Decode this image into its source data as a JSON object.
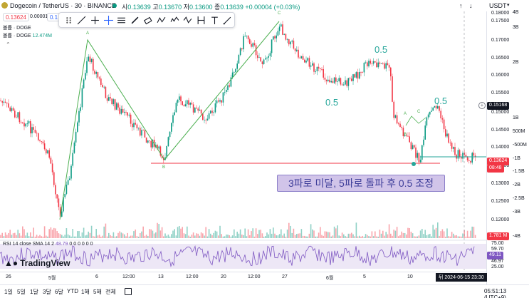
{
  "header": {
    "symbol": "Dogecoin / TetherUS · 30 · BINANCE",
    "ohlc_o_label": "시",
    "ohlc_o": "0.13639",
    "ohlc_h_label": "고",
    "ohlc_h": "0.13670",
    "ohlc_l_label": "저",
    "ohlc_l": "0.13600",
    "ohlc_c_label": "종",
    "ohlc_c": "0.13639",
    "change": "+0.00004 (+0.03%)",
    "sell_price": "0.13624",
    "spread": "0.00001",
    "buy_price": "0.1",
    "currency": "USDT"
  },
  "legend": {
    "volume_label": "볼륨 · DOGE",
    "volume2_label": "볼륨 · DOGE",
    "volume2_value": "12.474M"
  },
  "price_axis": {
    "ticks": [
      "0.18000",
      "0.17500",
      "0.17000",
      "0.16500",
      "0.16000",
      "0.15500",
      "0.15000",
      "0.14500",
      "0.14000",
      "0.13500",
      "0.13000",
      "0.12500",
      "0.12000"
    ],
    "volume_ticks": [
      "4B",
      "3B",
      "2B",
      "1B",
      "500M",
      "-500M",
      "-1B",
      "-1.5B",
      "-2B",
      "-2.5B",
      "-3B",
      "-4B"
    ],
    "tag_high": "0.15168",
    "tag_current": "0.13624",
    "tag_countdown": "08:48",
    "tag_volume": "1.781 M",
    "rsi_ticks": [
      "75.00",
      "59.70",
      "46.97",
      "25.00"
    ],
    "rsi_tag": "49.11"
  },
  "annotation": {
    "text": "3파로 미달, 5파로 돌파 후 0.5 조정"
  },
  "wave_labels": [
    {
      "text": "0.5"
    },
    {
      "text": "0.5"
    },
    {
      "text": "0.5"
    }
  ],
  "point_labels": [
    "A",
    "B",
    "C",
    "A",
    "B",
    "C"
  ],
  "rsi": {
    "legend": "RSI 14 close SMA 14 2",
    "value": "48.79",
    "extra": "0 0 0 0 0 0"
  },
  "time_axis": {
    "ticks": [
      "26",
      "5월",
      "6",
      "12:00",
      "13",
      "12:00",
      "20",
      "12:00",
      "27",
      "6월",
      "5",
      "10"
    ],
    "cursor_label": "뒤 2024-06-15  23:30"
  },
  "bottom_bar": {
    "ranges": [
      "1일",
      "5일",
      "1달",
      "3달",
      "6달",
      "YTD",
      "1해",
      "5해",
      "전체"
    ],
    "clock": "05:51:13 (UTC+9)"
  },
  "brand": {
    "name": "TradingView"
  },
  "colors": {
    "up": "#089981",
    "down": "#f23645",
    "wave_text": "#26a69a",
    "trend_line": "#4caf50",
    "support_line": "#f23645",
    "annotation_bg": "#d1c4e9",
    "rsi_line": "#7e57c2"
  }
}
